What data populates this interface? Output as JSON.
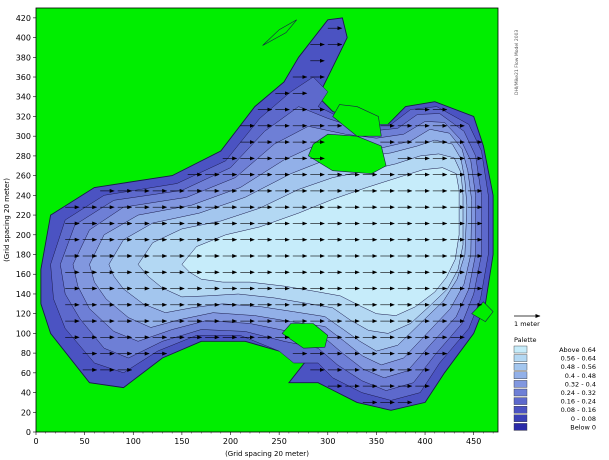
{
  "chart_data": {
    "type": "heatmap",
    "xlabel": "(Grid spacing 20 meter)",
    "ylabel": "(Grid spacing 20 meter)",
    "xlim": [
      0,
      475
    ],
    "ylim": [
      0,
      430
    ],
    "xticks": [
      0,
      50,
      100,
      150,
      200,
      250,
      300,
      350,
      400,
      450
    ],
    "yticks": [
      0,
      20,
      40,
      60,
      80,
      100,
      120,
      140,
      160,
      180,
      200,
      220,
      240,
      260,
      280,
      300,
      320,
      340,
      360,
      380,
      400,
      420
    ],
    "background_color": "#00ee00",
    "scale_arrow_label": "1 meter",
    "credit_text": "DHI/Mike21 Flow Model 2003",
    "legend": {
      "title": "Palette",
      "entries": [
        {
          "label": "Above 0.64",
          "color": "#c6ecfa"
        },
        {
          "label": "0.56 - 0.64",
          "color": "#b3d8f3"
        },
        {
          "label": "0.48 - 0.56",
          "color": "#a3c6ee"
        },
        {
          "label": "0.4 - 0.48",
          "color": "#92b0e8"
        },
        {
          "label": "0.32 -   0.4",
          "color": "#8197df"
        },
        {
          "label": "0.24 - 0.32",
          "color": "#6e7fd6"
        },
        {
          "label": "0.16 - 0.24",
          "color": "#5d69cc"
        },
        {
          "label": "0.08 - 0.16",
          "color": "#4b53c2"
        },
        {
          "label": "0 - 0.08",
          "color": "#3a40b7"
        },
        {
          "label": "Below    0",
          "color": "#2a2aa8"
        }
      ]
    },
    "contour_bands": [
      {
        "level": 0.08,
        "color": "#4b53c2",
        "outline": [
          [
            5,
            165
          ],
          [
            15,
            220
          ],
          [
            60,
            248
          ],
          [
            140,
            260
          ],
          [
            190,
            285
          ],
          [
            225,
            330
          ],
          [
            255,
            355
          ],
          [
            270,
            380
          ],
          [
            300,
            418
          ],
          [
            315,
            420
          ],
          [
            320,
            400
          ],
          [
            305,
            370
          ],
          [
            290,
            340
          ],
          [
            305,
            325
          ],
          [
            335,
            315
          ],
          [
            360,
            310
          ],
          [
            380,
            330
          ],
          [
            410,
            335
          ],
          [
            450,
            320
          ],
          [
            460,
            290
          ],
          [
            470,
            240
          ],
          [
            470,
            180
          ],
          [
            462,
            130
          ],
          [
            450,
            100
          ],
          [
            420,
            60
          ],
          [
            400,
            30
          ],
          [
            365,
            22
          ],
          [
            330,
            30
          ],
          [
            300,
            45
          ],
          [
            290,
            50
          ],
          [
            260,
            50
          ],
          [
            280,
            75
          ],
          [
            250,
            82
          ],
          [
            215,
            92
          ],
          [
            170,
            92
          ],
          [
            130,
            75
          ],
          [
            90,
            45
          ],
          [
            55,
            50
          ],
          [
            15,
            100
          ],
          [
            5,
            130
          ]
        ]
      },
      {
        "level": 0.16,
        "color": "#5d69cc",
        "outline": [
          [
            15,
            170
          ],
          [
            30,
            215
          ],
          [
            70,
            240
          ],
          [
            145,
            252
          ],
          [
            195,
            275
          ],
          [
            230,
            318
          ],
          [
            262,
            345
          ],
          [
            285,
            360
          ],
          [
            300,
            345
          ],
          [
            290,
            330
          ],
          [
            315,
            318
          ],
          [
            345,
            312
          ],
          [
            365,
            312
          ],
          [
            385,
            327
          ],
          [
            412,
            330
          ],
          [
            445,
            312
          ],
          [
            458,
            285
          ],
          [
            465,
            240
          ],
          [
            465,
            180
          ],
          [
            457,
            135
          ],
          [
            445,
            105
          ],
          [
            415,
            70
          ],
          [
            395,
            40
          ],
          [
            365,
            32
          ],
          [
            335,
            40
          ],
          [
            305,
            55
          ],
          [
            290,
            70
          ],
          [
            265,
            70
          ],
          [
            250,
            82
          ],
          [
            210,
            98
          ],
          [
            165,
            98
          ],
          [
            125,
            82
          ],
          [
            90,
            60
          ],
          [
            60,
            70
          ],
          [
            30,
            105
          ],
          [
            18,
            135
          ]
        ]
      },
      {
        "level": 0.24,
        "color": "#6e7fd6",
        "outline": [
          [
            25,
            170
          ],
          [
            40,
            210
          ],
          [
            80,
            235
          ],
          [
            150,
            245
          ],
          [
            200,
            268
          ],
          [
            235,
            305
          ],
          [
            270,
            330
          ],
          [
            300,
            318
          ],
          [
            325,
            310
          ],
          [
            352,
            306
          ],
          [
            372,
            308
          ],
          [
            392,
            322
          ],
          [
            415,
            323
          ],
          [
            440,
            305
          ],
          [
            452,
            280
          ],
          [
            458,
            240
          ],
          [
            458,
            180
          ],
          [
            450,
            140
          ],
          [
            438,
            110
          ],
          [
            410,
            78
          ],
          [
            388,
            50
          ],
          [
            360,
            42
          ],
          [
            335,
            52
          ],
          [
            310,
            68
          ],
          [
            290,
            85
          ],
          [
            255,
            92
          ],
          [
            215,
            102
          ],
          [
            170,
            104
          ],
          [
            130,
            92
          ],
          [
            95,
            75
          ],
          [
            70,
            85
          ],
          [
            45,
            115
          ],
          [
            30,
            140
          ]
        ]
      },
      {
        "level": 0.32,
        "color": "#8197df",
        "outline": [
          [
            38,
            170
          ],
          [
            55,
            205
          ],
          [
            90,
            228
          ],
          [
            155,
            238
          ],
          [
            205,
            258
          ],
          [
            245,
            292
          ],
          [
            280,
            310
          ],
          [
            318,
            302
          ],
          [
            350,
            298
          ],
          [
            378,
            302
          ],
          [
            400,
            315
          ],
          [
            420,
            314
          ],
          [
            437,
            296
          ],
          [
            447,
            275
          ],
          [
            452,
            240
          ],
          [
            452,
            180
          ],
          [
            445,
            145
          ],
          [
            432,
            117
          ],
          [
            405,
            88
          ],
          [
            382,
            62
          ],
          [
            358,
            55
          ],
          [
            336,
            64
          ],
          [
            315,
            80
          ],
          [
            295,
            97
          ],
          [
            260,
            102
          ],
          [
            220,
            110
          ],
          [
            175,
            113
          ],
          [
            140,
            104
          ],
          [
            105,
            92
          ],
          [
            80,
            102
          ],
          [
            55,
            125
          ],
          [
            43,
            148
          ]
        ]
      },
      {
        "level": 0.4,
        "color": "#92b0e8",
        "outline": [
          [
            55,
            170
          ],
          [
            70,
            200
          ],
          [
            105,
            220
          ],
          [
            160,
            230
          ],
          [
            210,
            248
          ],
          [
            255,
            276
          ],
          [
            290,
            292
          ],
          [
            325,
            290
          ],
          [
            355,
            288
          ],
          [
            385,
            295
          ],
          [
            405,
            307
          ],
          [
            425,
            303
          ],
          [
            438,
            287
          ],
          [
            444,
            265
          ],
          [
            448,
            235
          ],
          [
            447,
            180
          ],
          [
            440,
            150
          ],
          [
            426,
            125
          ],
          [
            400,
            98
          ],
          [
            378,
            75
          ],
          [
            355,
            68
          ],
          [
            336,
            77
          ],
          [
            317,
            92
          ],
          [
            297,
            107
          ],
          [
            262,
            112
          ],
          [
            225,
            118
          ],
          [
            182,
            121
          ],
          [
            148,
            114
          ],
          [
            118,
            106
          ],
          [
            95,
            116
          ],
          [
            72,
            135
          ],
          [
            60,
            152
          ]
        ]
      },
      {
        "level": 0.48,
        "color": "#a3c6ee",
        "outline": [
          [
            75,
            170
          ],
          [
            90,
            195
          ],
          [
            120,
            212
          ],
          [
            168,
            222
          ],
          [
            215,
            238
          ],
          [
            262,
            262
          ],
          [
            298,
            276
          ],
          [
            335,
            279
          ],
          [
            365,
            283
          ],
          [
            392,
            290
          ],
          [
            410,
            296
          ],
          [
            428,
            292
          ],
          [
            437,
            277
          ],
          [
            441,
            255
          ],
          [
            443,
            230
          ],
          [
            441,
            180
          ],
          [
            433,
            155
          ],
          [
            419,
            133
          ],
          [
            395,
            110
          ],
          [
            372,
            88
          ],
          [
            350,
            82
          ],
          [
            333,
            92
          ],
          [
            316,
            104
          ],
          [
            297,
            117
          ],
          [
            265,
            122
          ],
          [
            232,
            127
          ],
          [
            192,
            130
          ],
          [
            160,
            126
          ],
          [
            133,
            121
          ],
          [
            110,
            130
          ],
          [
            90,
            145
          ],
          [
            80,
            158
          ]
        ]
      },
      {
        "level": 0.56,
        "color": "#b3d8f3",
        "outline": [
          [
            105,
            170
          ],
          [
            120,
            192
          ],
          [
            150,
            206
          ],
          [
            190,
            214
          ],
          [
            230,
            227
          ],
          [
            270,
            246
          ],
          [
            305,
            258
          ],
          [
            340,
            265
          ],
          [
            370,
            272
          ],
          [
            395,
            280
          ],
          [
            414,
            282
          ],
          [
            430,
            278
          ],
          [
            437,
            263
          ],
          [
            439,
            240
          ],
          [
            439,
            190
          ],
          [
            434,
            165
          ],
          [
            423,
            145
          ],
          [
            405,
            128
          ],
          [
            385,
            110
          ],
          [
            362,
            100
          ],
          [
            342,
            103
          ],
          [
            324,
            113
          ],
          [
            305,
            126
          ],
          [
            275,
            131
          ],
          [
            245,
            136
          ],
          [
            208,
            140
          ],
          [
            175,
            138
          ],
          [
            150,
            137
          ],
          [
            130,
            146
          ],
          [
            115,
            158
          ]
        ]
      },
      {
        "level": 0.64,
        "color": "#c6ecfa",
        "outline": [
          [
            150,
            170
          ],
          [
            165,
            188
          ],
          [
            195,
            200
          ],
          [
            230,
            208
          ],
          [
            270,
            222
          ],
          [
            305,
            236
          ],
          [
            340,
            248
          ],
          [
            372,
            258
          ],
          [
            398,
            266
          ],
          [
            418,
            268
          ],
          [
            432,
            262
          ],
          [
            435,
            245
          ],
          [
            435,
            200
          ],
          [
            431,
            175
          ],
          [
            422,
            157
          ],
          [
            410,
            142
          ],
          [
            390,
            127
          ],
          [
            370,
            118
          ],
          [
            350,
            120
          ],
          [
            333,
            128
          ],
          [
            313,
            138
          ],
          [
            285,
            143
          ],
          [
            255,
            148
          ],
          [
            220,
            152
          ],
          [
            192,
            152
          ],
          [
            170,
            155
          ],
          [
            158,
            162
          ]
        ]
      }
    ],
    "land_patches": [
      [
        [
          280,
          280
        ],
        [
          305,
          265
        ],
        [
          345,
          262
        ],
        [
          360,
          270
        ],
        [
          355,
          290
        ],
        [
          330,
          300
        ],
        [
          300,
          302
        ],
        [
          285,
          292
        ]
      ],
      [
        [
          305,
          320
        ],
        [
          330,
          300
        ],
        [
          355,
          300
        ],
        [
          352,
          320
        ],
        [
          330,
          330
        ],
        [
          312,
          332
        ]
      ],
      [
        [
          448,
          120
        ],
        [
          462,
          112
        ],
        [
          470,
          122
        ],
        [
          460,
          132
        ]
      ],
      [
        [
          253,
          100
        ],
        [
          275,
          85
        ],
        [
          297,
          86
        ],
        [
          300,
          98
        ],
        [
          285,
          110
        ],
        [
          262,
          110
        ]
      ],
      [
        [
          233,
          392
        ],
        [
          250,
          408
        ],
        [
          268,
          418
        ],
        [
          257,
          405
        ]
      ]
    ],
    "flow_vectors": {
      "x_start": 30,
      "x_end": 465,
      "x_step": 18,
      "y_start": 30,
      "y_end": 415,
      "y_step": 16.5,
      "speed": "Above 0.64",
      "direction_deg": 0
    }
  }
}
